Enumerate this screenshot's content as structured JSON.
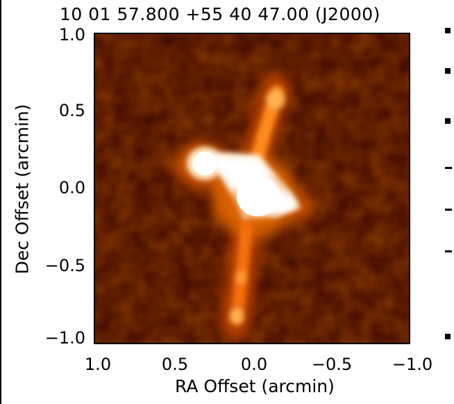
{
  "figure": {
    "title": "10 01 57.800 +55 40 47.00 (J2000)",
    "xlabel": "RA Offset (arcmin)",
    "ylabel": "Dec Offset (arcmin)",
    "yticks": [
      "1.0",
      "0.5",
      "0.0",
      "−0.5",
      "−1.0"
    ],
    "xticks": [
      "1.0",
      "0.5",
      "0.0",
      "−0.5",
      "−1.0"
    ],
    "colormap": [
      "#3a0500",
      "#7a1a00",
      "#c84a00",
      "#ff9a30",
      "#ffffff"
    ]
  }
}
